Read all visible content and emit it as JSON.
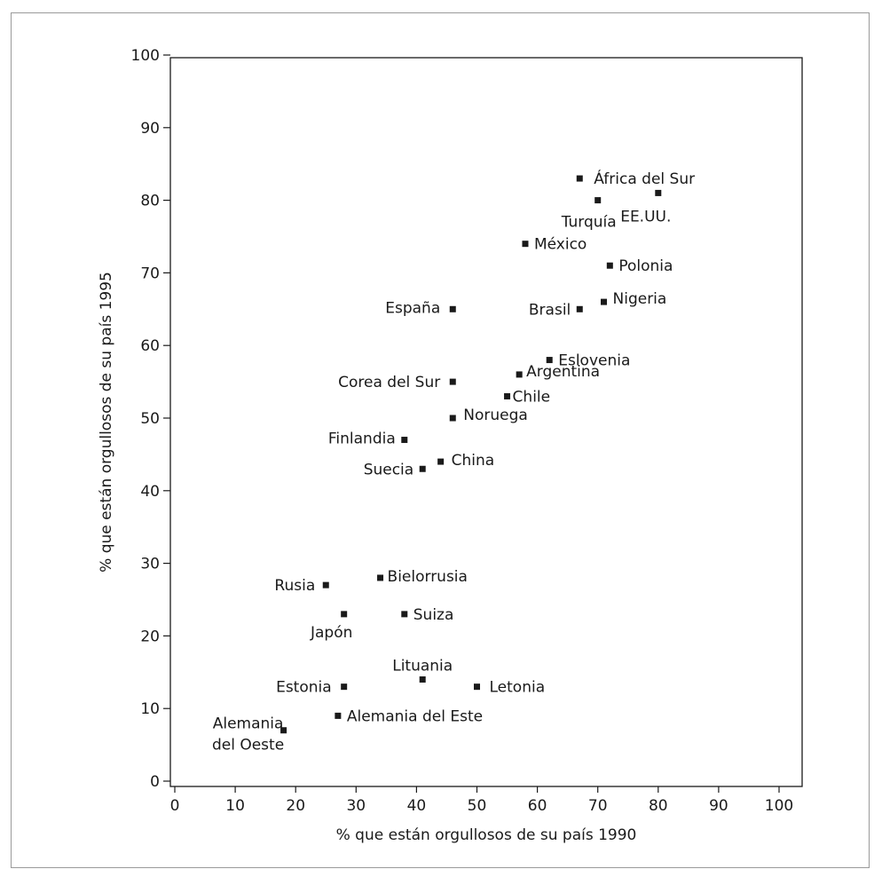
{
  "chart_data": {
    "type": "scatter",
    "title": "",
    "xlabel": "% que están orgullosos de su país 1990",
    "ylabel": "% que están orgullosos de su país 1995",
    "xlim": [
      0,
      100
    ],
    "ylim": [
      0,
      100
    ],
    "xticks": [
      "0",
      "10",
      "20",
      "30",
      "40",
      "50",
      "60",
      "70",
      "80",
      "90",
      "100"
    ],
    "yticks": [
      "0",
      "10",
      "20",
      "30",
      "40",
      "50",
      "60",
      "70",
      "80",
      "90",
      "100"
    ],
    "grid": false,
    "marker": "square",
    "marker_color": "#1a1a1a",
    "points": [
      {
        "label": "África del Sur",
        "x": 67,
        "y": 83
      },
      {
        "label": "EE.UU.",
        "x": 80,
        "y": 81
      },
      {
        "label": "Turquía",
        "x": 70,
        "y": 80
      },
      {
        "label": "México",
        "x": 58,
        "y": 74
      },
      {
        "label": "Polonia",
        "x": 72,
        "y": 71
      },
      {
        "label": "Nigeria",
        "x": 71,
        "y": 66
      },
      {
        "label": "Brasil",
        "x": 67,
        "y": 65
      },
      {
        "label": "España",
        "x": 46,
        "y": 65
      },
      {
        "label": "Eslovenia",
        "x": 62,
        "y": 58
      },
      {
        "label": "Argentina",
        "x": 57,
        "y": 56
      },
      {
        "label": "Corea del Sur",
        "x": 46,
        "y": 55
      },
      {
        "label": "Chile",
        "x": 55,
        "y": 53
      },
      {
        "label": "Noruega",
        "x": 46,
        "y": 50
      },
      {
        "label": "Finlandia",
        "x": 38,
        "y": 47
      },
      {
        "label": "China",
        "x": 44,
        "y": 44
      },
      {
        "label": "Suecia",
        "x": 41,
        "y": 43
      },
      {
        "label": "Bielorrusia",
        "x": 34,
        "y": 28
      },
      {
        "label": "Rusia",
        "x": 25,
        "y": 27
      },
      {
        "label": "Japón",
        "x": 28,
        "y": 23
      },
      {
        "label": "Suiza",
        "x": 38,
        "y": 23
      },
      {
        "label": "Lituania",
        "x": 41,
        "y": 14
      },
      {
        "label": "Estonia",
        "x": 28,
        "y": 13
      },
      {
        "label": "Letonia",
        "x": 50,
        "y": 13
      },
      {
        "label": "Alemania del Este",
        "x": 27,
        "y": 9
      },
      {
        "label": "Alemania del Oeste",
        "x": 18,
        "y": 7
      }
    ]
  }
}
